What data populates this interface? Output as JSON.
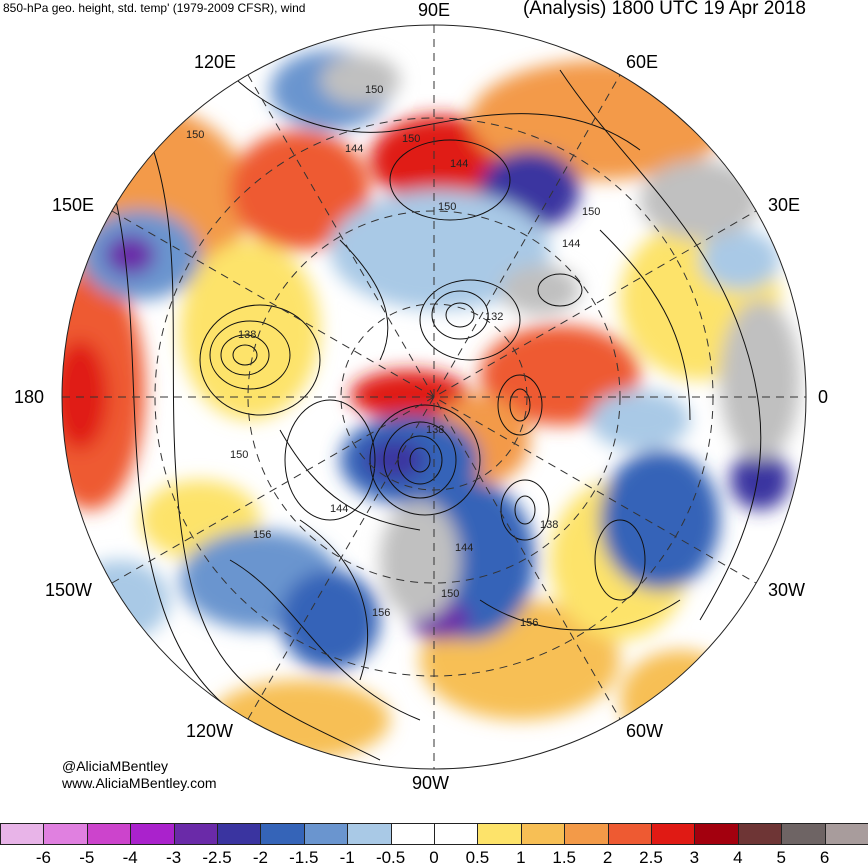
{
  "header": {
    "left_title": "850-hPa geo. height, std. temp' (1979-2009 CFSR), wind",
    "right_title": "(Analysis) 1800 UTC 19 Apr 2018"
  },
  "credits": {
    "handle": "@AliciaMBentley",
    "website": "www.AliciaMBentley.com"
  },
  "longitude_labels": {
    "lon_90e": "90E",
    "lon_120e": "120E",
    "lon_60e": "60E",
    "lon_150e": "150E",
    "lon_30e": "30E",
    "lon_180": "180",
    "lon_0": "0",
    "lon_150w": "150W",
    "lon_30w": "30W",
    "lon_120w": "120W",
    "lon_60w": "60W",
    "lon_90w": "90W"
  },
  "contour_labels": [
    "150",
    "150",
    "144",
    "150",
    "144",
    "150",
    "150",
    "144",
    "132",
    "138",
    "150",
    "156",
    "138",
    "138",
    "144",
    "144",
    "150",
    "156",
    "156"
  ],
  "colorbar": {
    "colors": [
      "#e8b4e8",
      "#e080e0",
      "#cc44cc",
      "#aa22cc",
      "#6a2aa8",
      "#3a34a0",
      "#3564b8",
      "#6a95cf",
      "#a9c9e6",
      "#ffffff",
      "#ffffff",
      "#fde36a",
      "#f7bf55",
      "#f39a48",
      "#ee5a32",
      "#e01a14",
      "#a3000e",
      "#6e3535",
      "#6e6464",
      "#a89c9c"
    ],
    "tick_labels": [
      "-6",
      "-5",
      "-4",
      "-3",
      "-2.5",
      "-2",
      "-1.5",
      "-1",
      "-0.5",
      "0",
      "0.5",
      "1",
      "1.5",
      "2",
      "2.5",
      "3",
      "4",
      "5",
      "6"
    ]
  }
}
